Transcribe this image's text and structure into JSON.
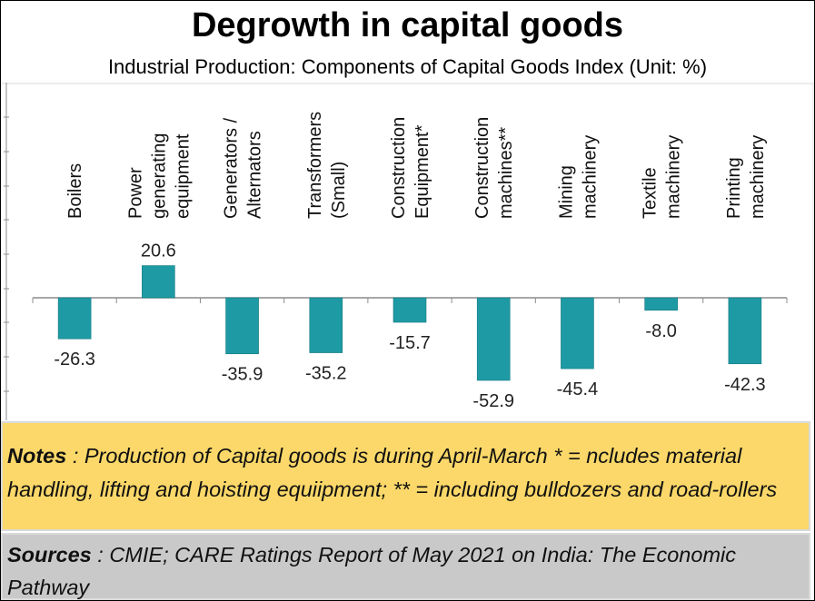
{
  "chart_data": {
    "type": "bar",
    "title": "Degrowth in capital goods",
    "subtitle": "Industrial Production: Components of Capital Goods Index (Unit: %)",
    "categories": [
      [
        "Boilers"
      ],
      [
        "Power",
        "generating",
        "equipment"
      ],
      [
        "Generators /",
        "Alternators"
      ],
      [
        "Transformers",
        "(Small)"
      ],
      [
        "Construction",
        "Equipment*"
      ],
      [
        "Construction",
        "machines**"
      ],
      [
        "Mining",
        "machinery"
      ],
      [
        "Textile",
        "machinery"
      ],
      [
        "Printing",
        "machinery"
      ]
    ],
    "values": [
      -26.3,
      20.6,
      -35.9,
      -35.2,
      -15.7,
      -52.9,
      -45.4,
      -8.0,
      -42.3
    ],
    "value_labels": [
      "-26.3",
      "20.6",
      "-35.9",
      "-35.2",
      "-15.7",
      "-52.9",
      "-45.4",
      "-8.0",
      "-42.3"
    ],
    "bar_color": "#1e9aa4",
    "axis_color": "#8c8c8c",
    "xlabel": "",
    "ylabel": "",
    "gridlines": false
  },
  "notes": {
    "label": "Notes",
    "text": " : Production of Capital goods is during April-March * = ncludes material handling, lifting and hoisting equiipment;  ** = including bulldozers and road-rollers",
    "bg_color": "#fbd869"
  },
  "sources": {
    "label": "Sources",
    "text": " : CMIE; CARE Ratings Report of May 2021 on India: The Economic Pathway",
    "bg_color": "#c9c9c9"
  }
}
